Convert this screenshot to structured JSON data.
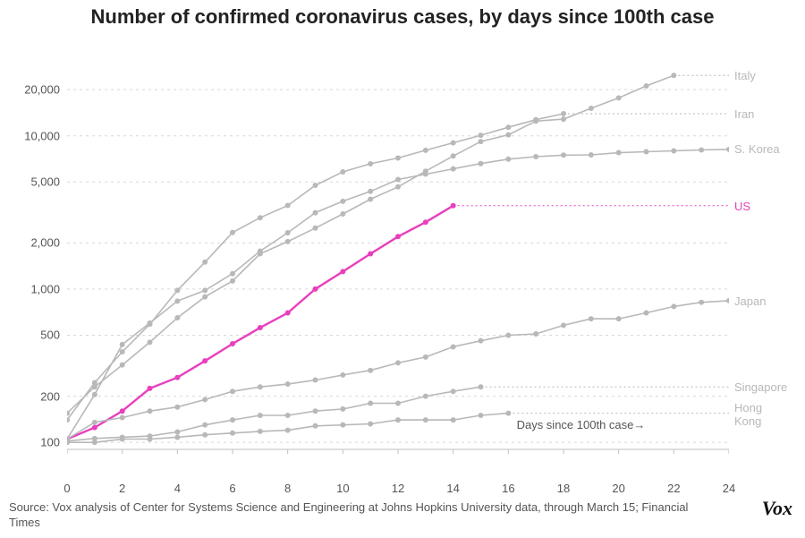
{
  "title": "Number of confirmed coronavirus cases, by days since 100th case",
  "title_fontsize": 22,
  "source": "Source: Vox analysis of Center for Systems Science and Engineering at Johns Hopkins University data, through March 15; Financial Times",
  "logo": "Vox",
  "chart": {
    "type": "line",
    "background_color": "#ffffff",
    "grid_color": "#d8d8d8",
    "grid_dash": "3,4",
    "axis_color": "#bfbfbf",
    "x": {
      "label_inline": "Days since 100th case→",
      "min": 0,
      "max": 24,
      "ticks": [
        0,
        2,
        4,
        6,
        8,
        10,
        12,
        14,
        16,
        18,
        20,
        22,
        24
      ],
      "tick_fontsize": 13,
      "tick_color": "#555555"
    },
    "y": {
      "scale": "log",
      "min": 90,
      "max": 30000,
      "ticks": [
        100,
        200,
        500,
        1000,
        2000,
        5000,
        10000,
        20000
      ],
      "tick_labels": [
        "100",
        "200",
        "500",
        "1,000",
        "2,000",
        "5,000",
        "10,000",
        "20,000"
      ],
      "tick_fontsize": 13,
      "tick_color": "#555555"
    },
    "label_fontsize": 13,
    "other_series_color": "#b8b8b8",
    "highlight_color": "#e83fbd",
    "marker_radius": 3,
    "line_width": 1.6,
    "highlight_line_width": 2.4,
    "series": [
      {
        "name": "Italy",
        "label": "Italy",
        "highlight": false,
        "data": [
          155,
          230,
          320,
          450,
          650,
          890,
          1130,
          1700,
          2040,
          2500,
          3090,
          3860,
          4640,
          5880,
          7380,
          9170,
          10150,
          12460,
          12840,
          15110,
          17660,
          21160,
          24750
        ]
      },
      {
        "name": "Iran",
        "label": "Iran",
        "highlight": false,
        "data": [
          140,
          245,
          390,
          590,
          980,
          1500,
          2340,
          2920,
          3510,
          4750,
          5820,
          6570,
          7160,
          8040,
          9000,
          10080,
          11360,
          12730,
          13940
        ]
      },
      {
        "name": "S. Korea",
        "label": "S. Korea",
        "highlight": false,
        "data": [
          105,
          205,
          435,
          600,
          835,
          980,
          1260,
          1770,
          2330,
          3150,
          3740,
          4340,
          5190,
          5620,
          6090,
          6590,
          7040,
          7310,
          7480,
          7510,
          7760,
          7870,
          7980,
          8090,
          8160,
          8240
        ]
      },
      {
        "name": "US",
        "label": "US",
        "highlight": true,
        "data": [
          105,
          125,
          160,
          225,
          265,
          340,
          440,
          560,
          700,
          1000,
          1300,
          1700,
          2200,
          2730,
          3500
        ]
      },
      {
        "name": "Japan",
        "label": "Japan",
        "highlight": false,
        "data": [
          105,
          135,
          145,
          160,
          170,
          190,
          215,
          230,
          240,
          255,
          275,
          295,
          330,
          360,
          420,
          460,
          500,
          510,
          580,
          640,
          640,
          700,
          770,
          820,
          840
        ]
      },
      {
        "name": "Singapore",
        "label": "Singapore",
        "highlight": false,
        "data": [
          102,
          106,
          108,
          110,
          117,
          130,
          140,
          150,
          150,
          160,
          165,
          180,
          180,
          200,
          215,
          230
        ]
      },
      {
        "name": "Hong Kong",
        "label": "Hong\nKong",
        "highlight": false,
        "data": [
          100,
          100,
          105,
          105,
          108,
          112,
          115,
          118,
          120,
          128,
          130,
          132,
          140,
          140,
          140,
          150,
          155
        ]
      }
    ]
  }
}
